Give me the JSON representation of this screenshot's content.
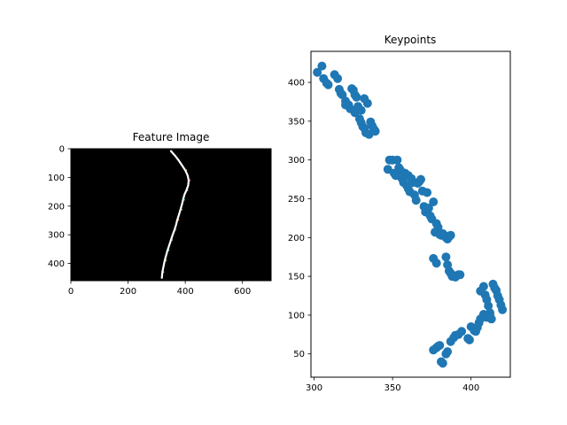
{
  "chart_data": [
    {
      "type": "image",
      "title": "Feature Image",
      "xlim": [
        0,
        700
      ],
      "ylim": [
        460,
        0
      ],
      "xticks": [
        0,
        200,
        400,
        600
      ],
      "yticks": [
        0,
        100,
        200,
        300,
        400
      ],
      "background": "#000000",
      "stroke_color": "#ffffff",
      "trace": [
        [
          350,
          8
        ],
        [
          365,
          25
        ],
        [
          378,
          42
        ],
        [
          390,
          60
        ],
        [
          400,
          75
        ],
        [
          408,
          92
        ],
        [
          412,
          110
        ],
        [
          410,
          128
        ],
        [
          404,
          145
        ],
        [
          397,
          160
        ],
        [
          392,
          178
        ],
        [
          388,
          195
        ],
        [
          383,
          212
        ],
        [
          378,
          230
        ],
        [
          372,
          248
        ],
        [
          368,
          265
        ],
        [
          362,
          283
        ],
        [
          356,
          300
        ],
        [
          350,
          318
        ],
        [
          344,
          336
        ],
        [
          338,
          354
        ],
        [
          333,
          372
        ],
        [
          328,
          390
        ],
        [
          324,
          410
        ],
        [
          320,
          430
        ],
        [
          318,
          450
        ]
      ]
    },
    {
      "type": "scatter",
      "title": "Keypoints",
      "xlim": [
        298,
        425
      ],
      "ylim": [
        20,
        440
      ],
      "xticks": [
        300,
        350,
        400
      ],
      "yticks": [
        50,
        100,
        150,
        200,
        250,
        300,
        350,
        400
      ],
      "marker_color": "#1f77b4",
      "points": [
        [
          302,
          413
        ],
        [
          305,
          421
        ],
        [
          306,
          405
        ],
        [
          308,
          399
        ],
        [
          309,
          397
        ],
        [
          313,
          410
        ],
        [
          315,
          405
        ],
        [
          316,
          391
        ],
        [
          317,
          386
        ],
        [
          318,
          384
        ],
        [
          320,
          376
        ],
        [
          320,
          371
        ],
        [
          322,
          371
        ],
        [
          323,
          366
        ],
        [
          324,
          392
        ],
        [
          325,
          390
        ],
        [
          326,
          384
        ],
        [
          327,
          381
        ],
        [
          328,
          369
        ],
        [
          326,
          361
        ],
        [
          329,
          353
        ],
        [
          330,
          348
        ],
        [
          331,
          343
        ],
        [
          332,
          341
        ],
        [
          333,
          335
        ],
        [
          335,
          333
        ],
        [
          336,
          349
        ],
        [
          337,
          344
        ],
        [
          338,
          340
        ],
        [
          339,
          337
        ],
        [
          334,
          373
        ],
        [
          332,
          379
        ],
        [
          330,
          364
        ],
        [
          347,
          288
        ],
        [
          348,
          300
        ],
        [
          350,
          300
        ],
        [
          351,
          283
        ],
        [
          352,
          280
        ],
        [
          353,
          300
        ],
        [
          354,
          290
        ],
        [
          355,
          287
        ],
        [
          356,
          276
        ],
        [
          357,
          271
        ],
        [
          358,
          283
        ],
        [
          359,
          267
        ],
        [
          360,
          263
        ],
        [
          360,
          280
        ],
        [
          361,
          259
        ],
        [
          362,
          276
        ],
        [
          363,
          271
        ],
        [
          364,
          255
        ],
        [
          365,
          248
        ],
        [
          366,
          270
        ],
        [
          367,
          272
        ],
        [
          368,
          275
        ],
        [
          369,
          260
        ],
        [
          370,
          240
        ],
        [
          371,
          233
        ],
        [
          372,
          258
        ],
        [
          373,
          238
        ],
        [
          374,
          228
        ],
        [
          375,
          224
        ],
        [
          376,
          246
        ],
        [
          377,
          207
        ],
        [
          378,
          218
        ],
        [
          379,
          213
        ],
        [
          380,
          204
        ],
        [
          381,
          203
        ],
        [
          382,
          205
        ],
        [
          383,
          203
        ],
        [
          384,
          200
        ],
        [
          385,
          198
        ],
        [
          386,
          201
        ],
        [
          387,
          203
        ],
        [
          376,
          173
        ],
        [
          378,
          167
        ],
        [
          384,
          175
        ],
        [
          385,
          165
        ],
        [
          386,
          157
        ],
        [
          387,
          154
        ],
        [
          388,
          150
        ],
        [
          389,
          151
        ],
        [
          390,
          149
        ],
        [
          392,
          152
        ],
        [
          393,
          152
        ],
        [
          406,
          131
        ],
        [
          408,
          137
        ],
        [
          409,
          126
        ],
        [
          410,
          120
        ],
        [
          411,
          112
        ],
        [
          412,
          100
        ],
        [
          413,
          95
        ],
        [
          414,
          140
        ],
        [
          415,
          135
        ],
        [
          416,
          132
        ],
        [
          417,
          125
        ],
        [
          418,
          120
        ],
        [
          419,
          113
        ],
        [
          420,
          107
        ],
        [
          408,
          101
        ],
        [
          406,
          95
        ],
        [
          405,
          90
        ],
        [
          404,
          84
        ],
        [
          402,
          80
        ],
        [
          410,
          97
        ],
        [
          412,
          103
        ],
        [
          376,
          55
        ],
        [
          378,
          58
        ],
        [
          379,
          60
        ],
        [
          380,
          61
        ],
        [
          381,
          40
        ],
        [
          382,
          38
        ],
        [
          384,
          50
        ],
        [
          385,
          53
        ],
        [
          387,
          66
        ],
        [
          389,
          71
        ],
        [
          390,
          74
        ],
        [
          392,
          75
        ],
        [
          394,
          79
        ],
        [
          398,
          70
        ],
        [
          399,
          68
        ],
        [
          400,
          85
        ],
        [
          403,
          79
        ]
      ]
    }
  ]
}
